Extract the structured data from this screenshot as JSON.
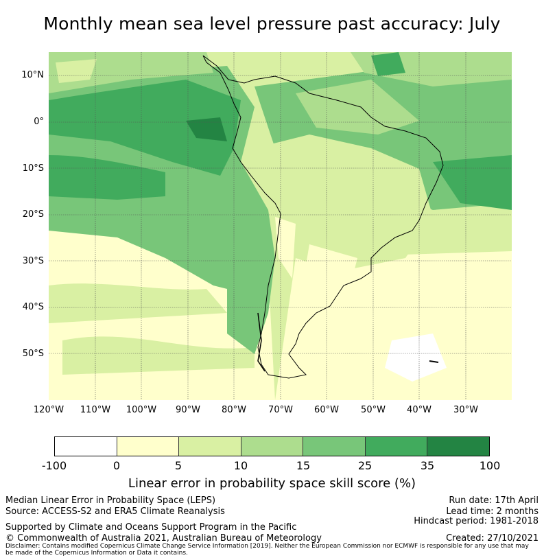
{
  "title": "Monthly mean sea level pressure past accuracy: July",
  "map": {
    "lat_labels": [
      "10°N",
      "0°",
      "10°S",
      "20°S",
      "30°S",
      "40°S",
      "50°S"
    ],
    "lon_labels": [
      "120°W",
      "110°W",
      "100°W",
      "90°W",
      "80°W",
      "70°W",
      "60°W",
      "50°W",
      "40°W",
      "30°W"
    ],
    "colors": {
      "white": "#ffffff",
      "c0_5": "#ffffcc",
      "c5_10": "#d9f0a3",
      "c10_15": "#addd8e",
      "c15_25": "#78c679",
      "c25_35": "#41ab5d",
      "c35_100": "#238443"
    }
  },
  "colorbar": {
    "ticks": [
      "-100",
      "0",
      "5",
      "10",
      "15",
      "25",
      "35",
      "100"
    ],
    "colors": [
      "#ffffff",
      "#ffffcc",
      "#d9f0a3",
      "#addd8e",
      "#78c679",
      "#41ab5d",
      "#238443"
    ],
    "title": "Linear error in probability space skill score (%)"
  },
  "footer": {
    "line1": "Median Linear Error in Probability Space (LEPS)",
    "line2": "Source: ACCESS-S2 and ERA5 Climate Reanalysis",
    "line3": "Supported by Climate and Oceans Support Program in the Pacific",
    "line4": "© Commonwealth of Australia 2021, Australian Bureau of Meteorology",
    "run_date": "Run date: 17th April",
    "lead_time": "Lead time: 2 months",
    "hindcast": "Hindcast period: 1981-2018",
    "created": "Created: 27/10/2021",
    "disclaimer1": "Disclaimer: Contains modified Copernicus Climate Change Service Information [2019]. Neither the European Commission nor ECMWF is responsible for any use that may",
    "disclaimer2": "be made of the Copernicus Information or Data it contains."
  }
}
